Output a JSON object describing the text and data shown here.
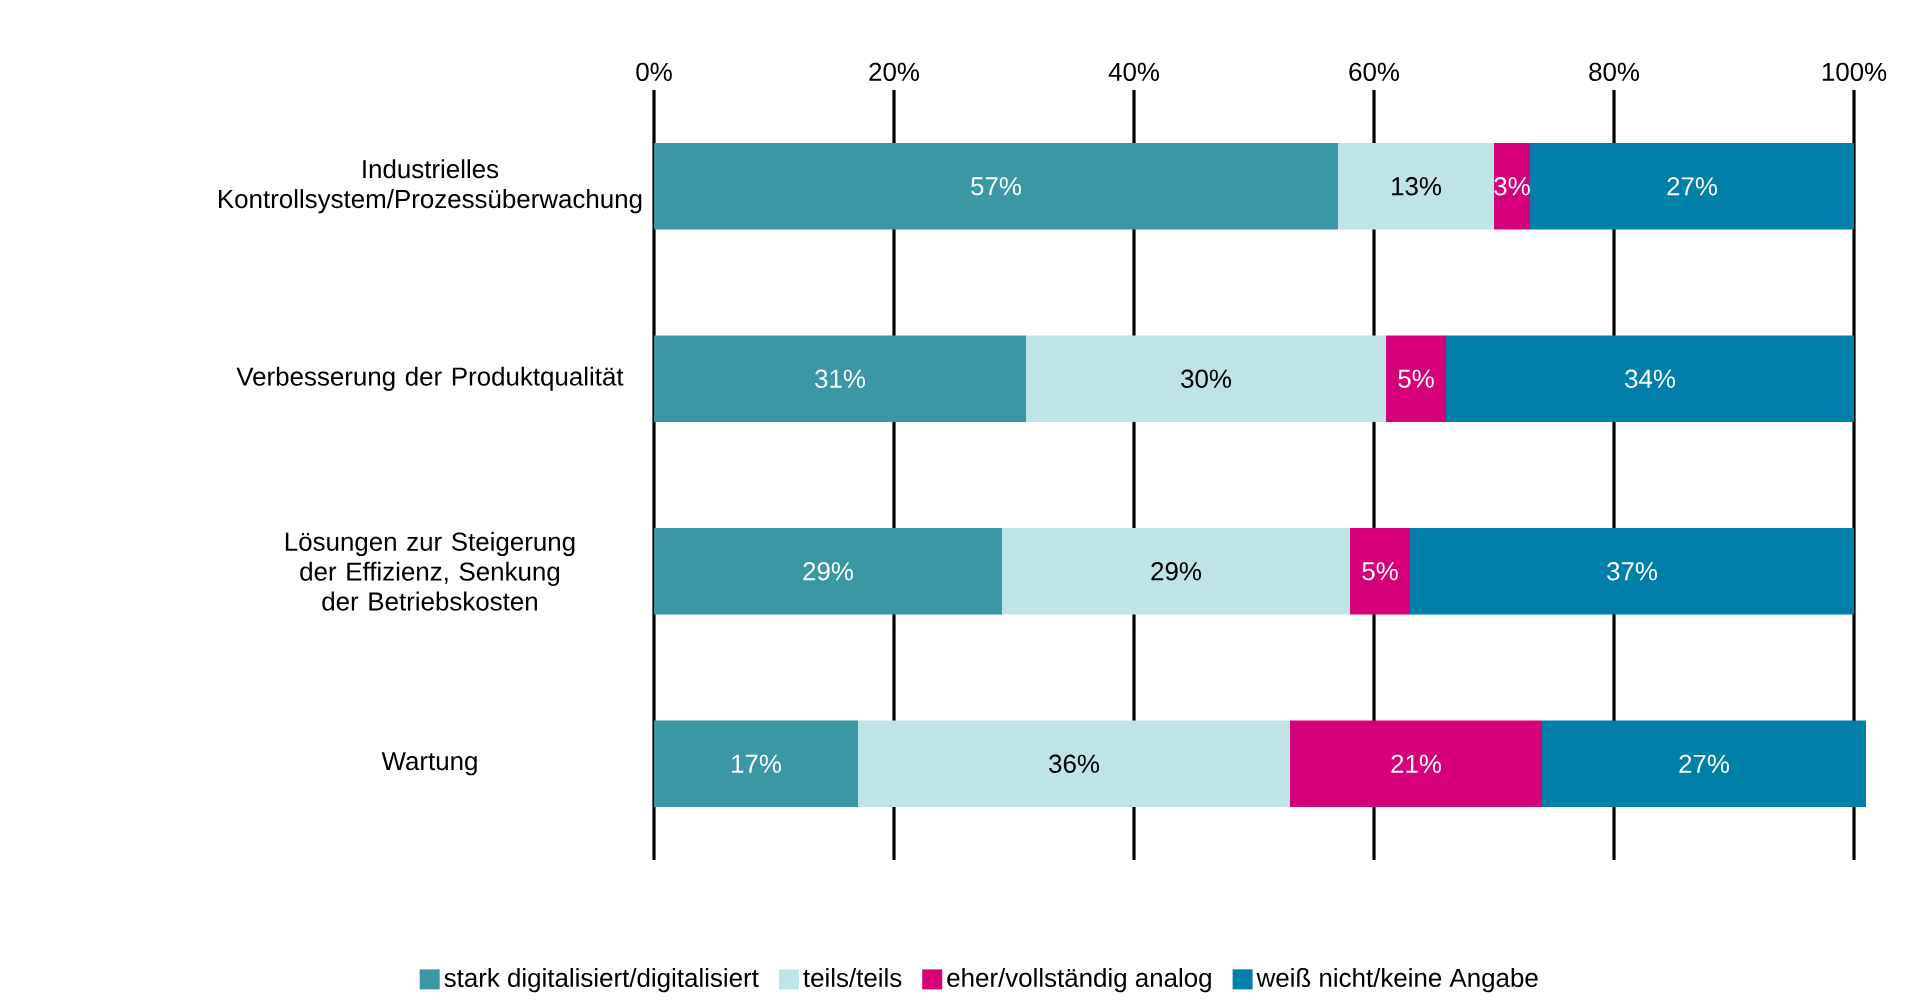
{
  "chart_data": {
    "type": "bar",
    "orientation": "horizontal",
    "stacked": true,
    "categories": [
      "Industrielles Kontrollsystem/Prozessüberwachung",
      "Verbesserung der Produktqualität",
      "Lösungen zur Steigerung der Effizienz, Senkung der Betriebskosten",
      "Wartung"
    ],
    "series": [
      {
        "name": "stark digitalisiert/digitalisiert",
        "color": "#3a97a3",
        "values": [
          57,
          31,
          29,
          17
        ],
        "value_labels": [
          "57%",
          "31%",
          "29%",
          "17%"
        ]
      },
      {
        "name": "teils/teils",
        "color": "#bfe4e8",
        "values": [
          13,
          30,
          29,
          36
        ],
        "value_labels": [
          "13%",
          "30%",
          "29%",
          "36%"
        ]
      },
      {
        "name": "eher/vollständig analog",
        "color": "#d6007b",
        "values": [
          3,
          5,
          5,
          21
        ],
        "value_labels": [
          "3%",
          "5%",
          "5%",
          "21%"
        ]
      },
      {
        "name": "weiß nicht/keine Angabe",
        "color": "#0080a8",
        "values": [
          27,
          34,
          37,
          27
        ],
        "value_labels": [
          "27%",
          "34%",
          "37%",
          "27%"
        ]
      }
    ],
    "xlim": [
      0,
      101
    ],
    "xticks": [
      {
        "value": 0,
        "label": "0%"
      },
      {
        "value": 20,
        "label": "20%"
      },
      {
        "value": 40,
        "label": "40%"
      },
      {
        "value": 60,
        "label": "60%"
      },
      {
        "value": 80,
        "label": "80%"
      },
      {
        "value": 100,
        "label": "100%"
      }
    ],
    "grid": "x",
    "legend": "bottom"
  }
}
